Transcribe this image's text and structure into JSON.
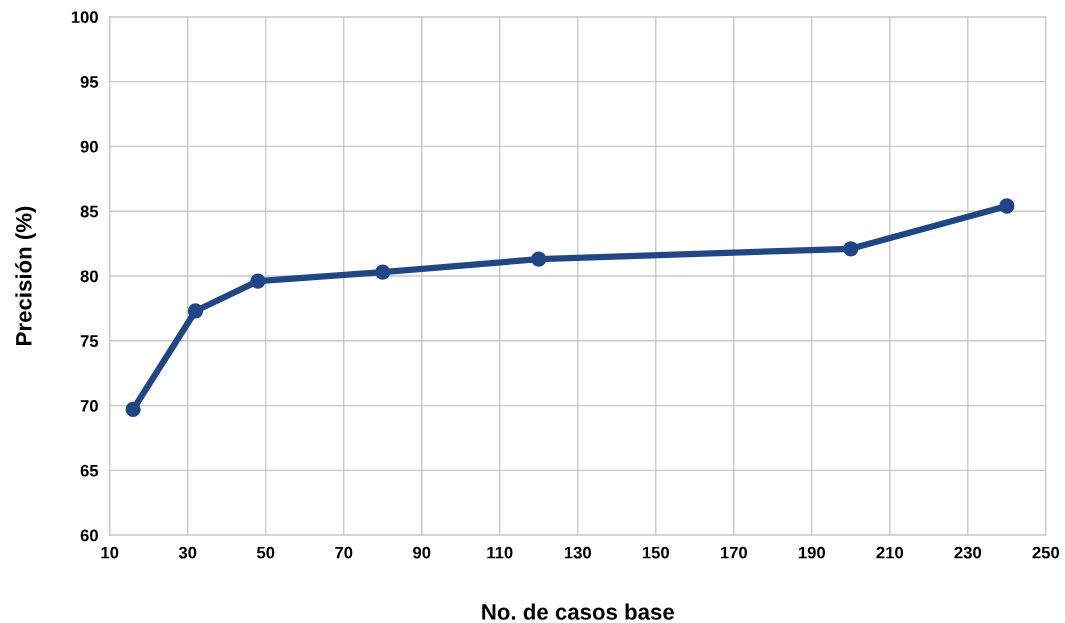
{
  "chart_data": {
    "type": "line",
    "xlabel": "No. de casos base",
    "ylabel": "Precisión (%)",
    "x": [
      16,
      32,
      48,
      80,
      120,
      200,
      240
    ],
    "series": [
      {
        "color": "#1f4788",
        "values": [
          69.7,
          77.3,
          79.6,
          80.3,
          81.3,
          82.1,
          85.4
        ]
      }
    ],
    "xlim": [
      10,
      250
    ],
    "xticks": [
      10,
      30,
      50,
      70,
      90,
      110,
      130,
      150,
      170,
      190,
      210,
      230,
      250
    ],
    "ylim": [
      60,
      100
    ],
    "yticks": [
      60,
      65,
      70,
      75,
      80,
      85,
      90,
      95,
      100
    ],
    "grid": true,
    "legend": false,
    "marker": "circle",
    "line_style": "solid"
  }
}
